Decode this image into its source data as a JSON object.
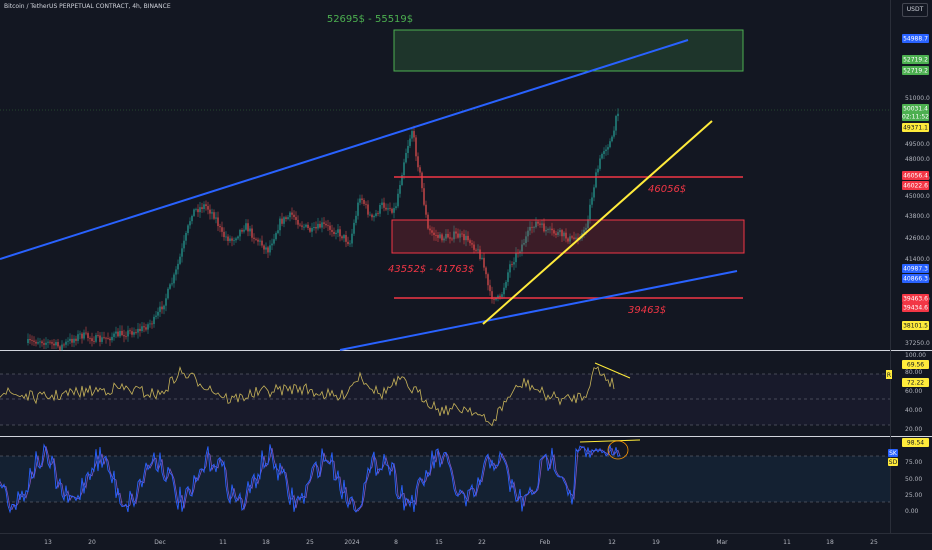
{
  "header": {
    "symbol": "Bitcoin / TetherUS PERPETUAL CONTRACT, 4h, BINANCE",
    "currency": "USDT"
  },
  "annotations": {
    "target_zone": "52695$ - 55519$",
    "res_level": "46056$",
    "mid_zone": "43552$ - 41763$",
    "support_level": "39463$"
  },
  "price_axis": {
    "ticks": [
      "51000.0",
      "49500.0",
      "48000.0",
      "47000.0",
      "45000.0",
      "43800.0",
      "42600.0",
      "41400.0",
      "40200.0",
      "39000.0",
      "37250.0"
    ]
  },
  "price_badges": [
    {
      "text": "54988.7",
      "bg": "#2962ff",
      "fg": "#ffffff"
    },
    {
      "text": "52719.2",
      "bg": "#4caf50",
      "fg": "#ffffff"
    },
    {
      "text": "52719.2",
      "bg": "#4caf50",
      "fg": "#ffffff"
    },
    {
      "text": "50031.4",
      "bg": "#4caf50",
      "fg": "#ffffff"
    },
    {
      "text": "02:11:52",
      "bg": "#4caf50",
      "fg": "#ffffff"
    },
    {
      "text": "49371.1",
      "bg": "#ffeb3b",
      "fg": "#131722"
    },
    {
      "text": "46056.4",
      "bg": "#f23645",
      "fg": "#ffffff"
    },
    {
      "text": "46022.6",
      "bg": "#f23645",
      "fg": "#ffffff"
    },
    {
      "text": "40987.3",
      "bg": "#2962ff",
      "fg": "#ffffff"
    },
    {
      "text": "40866.3",
      "bg": "#2962ff",
      "fg": "#ffffff"
    },
    {
      "text": "39463.6",
      "bg": "#f23645",
      "fg": "#ffffff"
    },
    {
      "text": "39434.6",
      "bg": "#f23645",
      "fg": "#ffffff"
    },
    {
      "text": "38101.5",
      "bg": "#ffeb3b",
      "fg": "#131722"
    }
  ],
  "rsi_pane": {
    "name": "RSI",
    "ticks": [
      "100.00",
      "80.00",
      "60.00",
      "40.00",
      "20.00"
    ],
    "badges": [
      {
        "text": "69.56",
        "bg": "#ffeb3b",
        "fg": "#131722"
      },
      {
        "text": "72.22",
        "bg": "#ffeb3b",
        "fg": "#131722"
      }
    ],
    "accent": "#c8b45a"
  },
  "stoch_pane": {
    "badge_k": "SK",
    "badge_d": "SD",
    "ticks": [
      "75.00",
      "50.00",
      "25.00",
      "0.00"
    ],
    "badges": [
      {
        "text": "98.54",
        "bg": "#ffeb3b",
        "fg": "#131722"
      }
    ],
    "accent": "#2962ff"
  },
  "time_axis": [
    "13",
    "20",
    "Dec",
    "11",
    "18",
    "25",
    "2024",
    "8",
    "15",
    "22",
    "Feb",
    "12",
    "19",
    "Mar",
    "11",
    "18",
    "25"
  ],
  "colors": {
    "background": "#131722",
    "channel": "#2962ff",
    "trendline": "#ffeb3b",
    "level": "#f23645",
    "zone_green": "#4caf50",
    "up_candle": "#26a69a",
    "down_candle": "#ef5350"
  }
}
